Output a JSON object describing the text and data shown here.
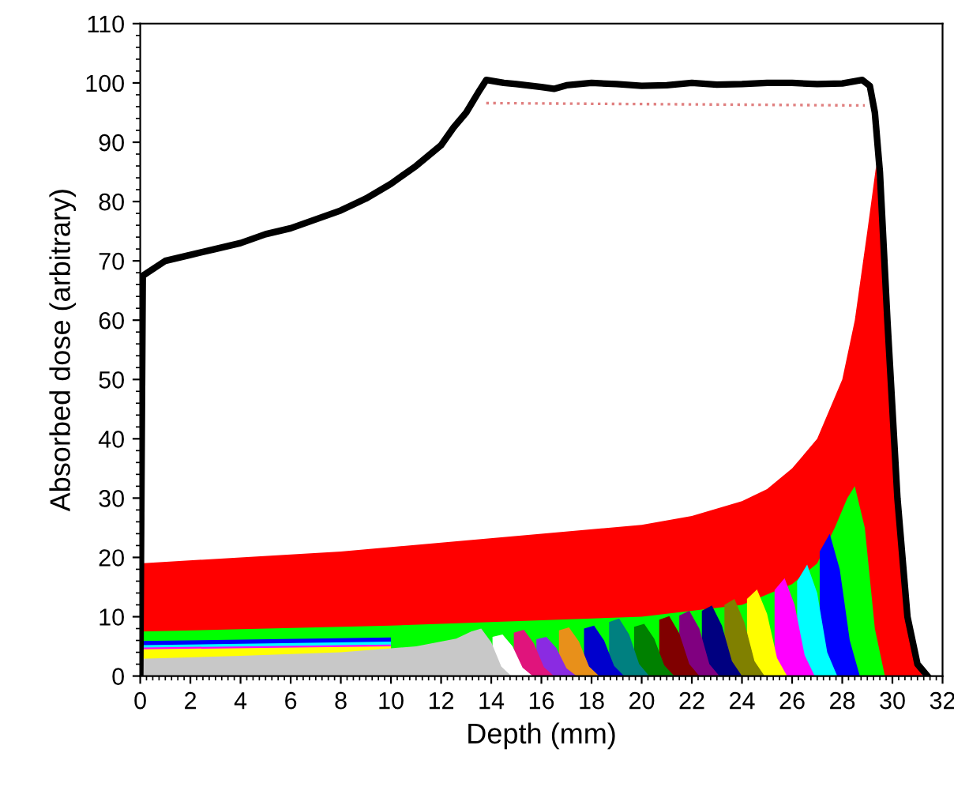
{
  "chart_data": {
    "type": "area",
    "xlabel": "Depth (mm)",
    "ylabel": "Absorbed dose (arbitrary)",
    "xlim": [
      0,
      32
    ],
    "xticks": [
      0,
      2,
      4,
      6,
      8,
      10,
      12,
      14,
      16,
      18,
      20,
      22,
      24,
      26,
      28,
      30,
      32
    ],
    "ylim": [
      0,
      110
    ],
    "yticks": [
      0,
      10,
      20,
      30,
      40,
      50,
      60,
      70,
      80,
      90,
      100,
      110
    ],
    "grid": false,
    "legend": false,
    "series": [
      {
        "color": "#ff0000",
        "x": [
          0,
          4,
          8,
          12,
          16,
          20,
          22,
          24,
          25,
          26,
          27,
          28,
          28.5,
          29,
          29.35,
          29.7,
          30,
          30.4,
          30.8,
          31.2
        ],
        "values": [
          19,
          20,
          21,
          22.5,
          24,
          25.5,
          27,
          29.5,
          31.5,
          35,
          40,
          50,
          60,
          75,
          86,
          70,
          45,
          20,
          5,
          0
        ]
      },
      {
        "color": "#00ff00",
        "x": [
          0,
          10,
          20,
          24,
          26,
          27,
          27.7,
          28.2,
          28.5,
          28.9,
          29.3,
          29.7
        ],
        "values": [
          7.5,
          8.5,
          10,
          12,
          15.5,
          19,
          25,
          30,
          32,
          25,
          8,
          0
        ]
      },
      {
        "color": "#0000ff",
        "x": [
          0,
          10,
          20,
          24,
          25.5,
          26.5,
          27.1,
          27.5,
          27.9,
          28.3,
          28.7
        ],
        "values": [
          5.9,
          6.5,
          null,
          null,
          null,
          null,
          21,
          24,
          18,
          6,
          0
        ]
      },
      {
        "color": "#00ffff",
        "x": [
          0,
          10,
          20,
          24,
          25.6,
          26.2,
          26.6,
          27,
          27.4,
          27.8
        ],
        "values": [
          5.2,
          5.8,
          null,
          null,
          null,
          16,
          18.8,
          14,
          4,
          0
        ]
      },
      {
        "color": "#ff00ff",
        "x": [
          0,
          10,
          20,
          23,
          24.7,
          25.3,
          25.7,
          26.1,
          26.5,
          26.9
        ],
        "values": [
          4.8,
          5.3,
          null,
          null,
          null,
          14.5,
          16.5,
          12,
          3.5,
          0
        ]
      },
      {
        "color": "#ffff00",
        "x": [
          0,
          10,
          20,
          22.5,
          23.6,
          24.2,
          24.6,
          25,
          25.4,
          25.8
        ],
        "values": [
          4.5,
          5,
          null,
          null,
          null,
          13,
          14.6,
          10.5,
          3,
          0
        ]
      },
      {
        "color": "#808000",
        "x": [
          23.3,
          23.7,
          24.1,
          24.5,
          24.9
        ],
        "values": [
          12,
          13,
          9,
          2.5,
          0
        ]
      },
      {
        "color": "#000080",
        "x": [
          22.4,
          22.8,
          23.2,
          23.6,
          24
        ],
        "values": [
          11,
          11.9,
          8.5,
          2.5,
          0
        ]
      },
      {
        "color": "#800080",
        "x": [
          21.5,
          21.9,
          22.3,
          22.7,
          23.1
        ],
        "values": [
          10.2,
          11,
          8,
          2,
          0
        ]
      },
      {
        "color": "#800000",
        "x": [
          20.7,
          21.1,
          21.5,
          21.9,
          22.3
        ],
        "values": [
          9.5,
          10.1,
          7.2,
          2,
          0
        ]
      },
      {
        "color": "#008000",
        "x": [
          19.7,
          20.1,
          20.5,
          20.9,
          21.3
        ],
        "values": [
          8.3,
          8.8,
          6.3,
          1.8,
          0
        ]
      },
      {
        "color": "#008080",
        "x": [
          18.7,
          19.1,
          19.5,
          19.9,
          20.3
        ],
        "values": [
          9.1,
          9.7,
          7,
          2,
          0
        ]
      },
      {
        "color": "#0000cd",
        "x": [
          17.7,
          18.1,
          18.5,
          18.9,
          19.3
        ],
        "values": [
          8,
          8.5,
          6,
          1.7,
          0
        ]
      },
      {
        "color": "#e8901a",
        "x": [
          16.7,
          17.1,
          17.5,
          17.9,
          18.3
        ],
        "values": [
          7.7,
          8.2,
          5.8,
          1.6,
          0
        ]
      },
      {
        "color": "#8a2be2",
        "x": [
          15.8,
          16.2,
          16.6,
          17,
          17.4
        ],
        "values": [
          6.2,
          6.6,
          4.7,
          1.3,
          0
        ]
      },
      {
        "color": "#e0147c",
        "x": [
          14.9,
          15.3,
          15.7,
          16.1,
          16.5
        ],
        "values": [
          7.3,
          7.8,
          5.5,
          1.5,
          0
        ]
      },
      {
        "color": "#ffffff",
        "x": [
          14.05,
          14.45,
          14.85,
          15.25,
          15.65
        ],
        "values": [
          6.6,
          7,
          5,
          1.4,
          0
        ]
      },
      {
        "color": "#c8c8c8",
        "x": [
          0,
          4,
          8,
          11,
          12.6,
          13.2,
          13.6,
          14,
          14.4,
          14.8
        ],
        "values": [
          2.9,
          3.4,
          4,
          5,
          6.3,
          7.5,
          8,
          5.7,
          1.6,
          0
        ]
      },
      {
        "type": "line",
        "line_style": "dotted",
        "color": "#e08080",
        "x": [
          13.8,
          28.9
        ],
        "values": [
          96.6,
          96.2
        ]
      },
      {
        "type": "line",
        "line_style": "solid",
        "color": "#000000",
        "x": [
          0,
          0.1,
          1,
          2,
          3,
          4,
          5,
          6,
          7,
          8,
          9,
          10,
          11,
          12,
          12.5,
          13,
          13.5,
          13.8,
          14.5,
          15,
          16,
          16.5,
          17,
          18,
          19,
          20,
          21,
          22,
          23,
          24,
          25,
          26,
          27,
          28,
          28.8,
          29.1,
          29.3,
          29.5,
          29.8,
          30.2,
          30.6,
          31,
          31.4
        ],
        "values": [
          0,
          67.5,
          70,
          71,
          72,
          73,
          74.5,
          75.5,
          77,
          78.5,
          80.5,
          83,
          86,
          89.5,
          92.5,
          95,
          98.5,
          100.5,
          100,
          99.8,
          99.3,
          99,
          99.6,
          100,
          99.8,
          99.5,
          99.6,
          100,
          99.7,
          99.8,
          100,
          100,
          99.8,
          99.9,
          100.5,
          99.5,
          95,
          85,
          60,
          30,
          10,
          2,
          0
        ]
      }
    ]
  }
}
